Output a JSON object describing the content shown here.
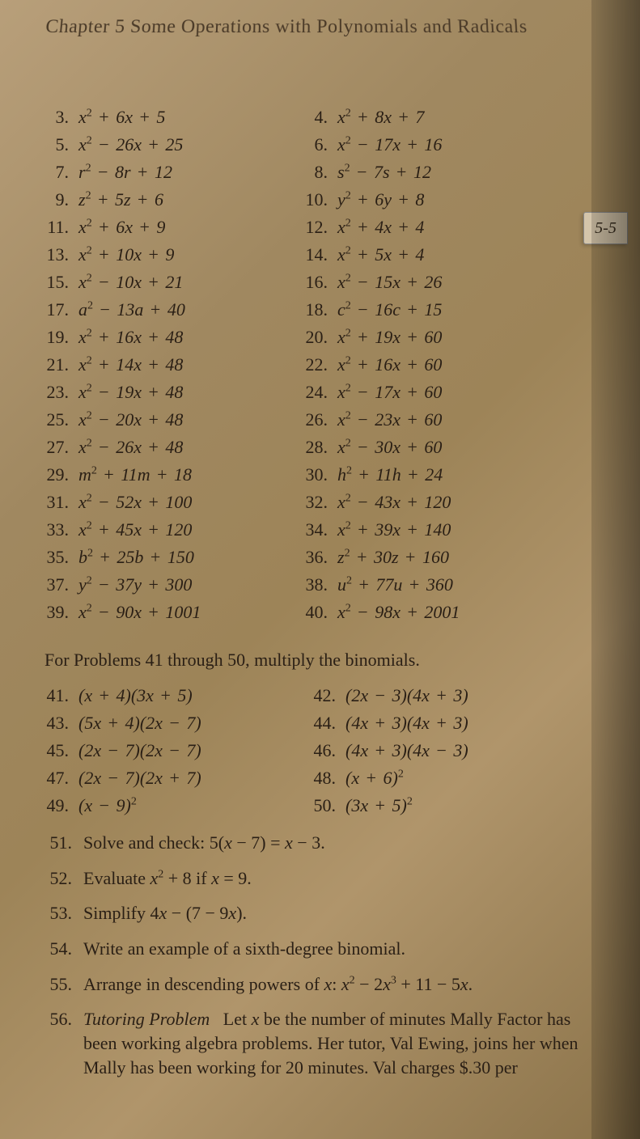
{
  "chapter_header": "Chapter 5  Some Operations with Polynomials and Radicals",
  "side_tab": "5-5",
  "set1": {
    "left": [
      {
        "n": "3.",
        "e": "x² + 6x + 5"
      },
      {
        "n": "5.",
        "e": "x² − 26x + 25"
      },
      {
        "n": "7.",
        "e": "r² − 8r + 12"
      },
      {
        "n": "9.",
        "e": "z² + 5z + 6"
      },
      {
        "n": "11.",
        "e": "x² + 6x + 9"
      },
      {
        "n": "13.",
        "e": "x² + 10x + 9"
      },
      {
        "n": "15.",
        "e": "x² − 10x + 21"
      },
      {
        "n": "17.",
        "e": "a² − 13a + 40"
      },
      {
        "n": "19.",
        "e": "x² + 16x + 48"
      },
      {
        "n": "21.",
        "e": "x² + 14x + 48"
      },
      {
        "n": "23.",
        "e": "x² − 19x + 48"
      },
      {
        "n": "25.",
        "e": "x² − 20x + 48"
      },
      {
        "n": "27.",
        "e": "x² − 26x + 48"
      },
      {
        "n": "29.",
        "e": "m² + 11m + 18"
      },
      {
        "n": "31.",
        "e": "x² − 52x + 100"
      },
      {
        "n": "33.",
        "e": "x² + 45x + 120"
      },
      {
        "n": "35.",
        "e": "b² + 25b + 150"
      },
      {
        "n": "37.",
        "e": "y² − 37y + 300"
      },
      {
        "n": "39.",
        "e": "x² − 90x + 1001"
      }
    ],
    "right": [
      {
        "n": "4.",
        "e": "x² + 8x + 7"
      },
      {
        "n": "6.",
        "e": "x² − 17x + 16"
      },
      {
        "n": "8.",
        "e": "s² − 7s + 12"
      },
      {
        "n": "10.",
        "e": "y² + 6y + 8"
      },
      {
        "n": "12.",
        "e": "x² + 4x + 4"
      },
      {
        "n": "14.",
        "e": "x² + 5x + 4"
      },
      {
        "n": "16.",
        "e": "x² − 15x + 26"
      },
      {
        "n": "18.",
        "e": "c² − 16c + 15"
      },
      {
        "n": "20.",
        "e": "x² + 19x + 60"
      },
      {
        "n": "22.",
        "e": "x² + 16x + 60"
      },
      {
        "n": "24.",
        "e": "x² − 17x + 60"
      },
      {
        "n": "26.",
        "e": "x² − 23x + 60"
      },
      {
        "n": "28.",
        "e": "x² − 30x + 60"
      },
      {
        "n": "30.",
        "e": "h² + 11h + 24"
      },
      {
        "n": "32.",
        "e": "x² − 43x + 120"
      },
      {
        "n": "34.",
        "e": "x² + 39x + 140"
      },
      {
        "n": "36.",
        "e": "z² + 30z + 160"
      },
      {
        "n": "38.",
        "e": "u² + 77u + 360"
      },
      {
        "n": "40.",
        "e": "x² − 98x + 2001"
      }
    ]
  },
  "section2_header": "For Problems 41 through 50, multiply the binomials.",
  "set2": {
    "left": [
      {
        "n": "41.",
        "e": "(x + 4)(3x + 5)"
      },
      {
        "n": "43.",
        "e": "(5x + 4)(2x − 7)"
      },
      {
        "n": "45.",
        "e": "(2x − 7)(2x − 7)"
      },
      {
        "n": "47.",
        "e": "(2x − 7)(2x + 7)"
      },
      {
        "n": "49.",
        "e": "(x − 9)²"
      }
    ],
    "right": [
      {
        "n": "42.",
        "e": "(2x − 3)(4x + 3)"
      },
      {
        "n": "44.",
        "e": "(4x + 3)(4x + 3)"
      },
      {
        "n": "46.",
        "e": "(4x + 3)(4x − 3)"
      },
      {
        "n": "48.",
        "e": "(x + 6)²"
      },
      {
        "n": "50.",
        "e": "(3x + 5)²"
      }
    ]
  },
  "word_problems": [
    {
      "n": "51.",
      "html": "Solve and check: 5(<span class='ital'>x</span> − 7) = <span class='ital'>x</span> − 3."
    },
    {
      "n": "52.",
      "html": "Evaluate <span class='ital'>x</span><sup>2</sup> + 8 if <span class='ital'>x</span> = 9."
    },
    {
      "n": "53.",
      "html": "Simplify 4<span class='ital'>x</span> − (7 − 9<span class='ital'>x</span>)."
    },
    {
      "n": "54.",
      "html": "Write an example of a sixth-degree binomial."
    },
    {
      "n": "55.",
      "html": "Arrange in descending powers of <span class='ital'>x</span>: <span class='ital'>x</span><sup>2</sup> − 2<span class='ital'>x</span><sup>3</sup> + 11 − 5<span class='ital'>x</span>."
    },
    {
      "n": "56.",
      "html": "<span class='ital'>Tutoring Problem</span>&nbsp;&nbsp;&nbsp;Let <span class='ital'>x</span> be the number of minutes Mally Factor has been working algebra problems. Her tutor, Val Ewing, joins her when Mally has been working for 20 minutes. Val charges $.30 per"
    }
  ]
}
